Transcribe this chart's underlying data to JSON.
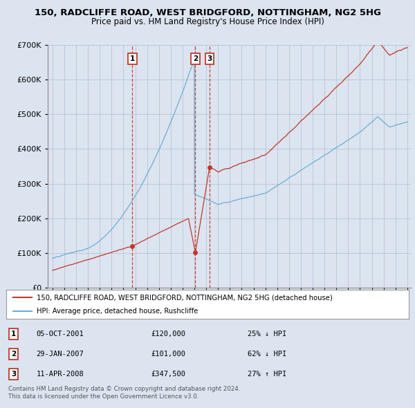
{
  "title": "150, RADCLIFFE ROAD, WEST BRIDGFORD, NOTTINGHAM, NG2 5HG",
  "subtitle": "Price paid vs. HM Land Registry's House Price Index (HPI)",
  "transactions": [
    {
      "num": 1,
      "date_str": "05-OCT-2001",
      "price": 120000,
      "year": 2001.76,
      "pct": "25%",
      "dir": "↓"
    },
    {
      "num": 2,
      "date_str": "29-JAN-2007",
      "price": 101000,
      "year": 2007.08,
      "pct": "62%",
      "dir": "↓"
    },
    {
      "num": 3,
      "date_str": "11-APR-2008",
      "price": 347500,
      "year": 2008.28,
      "pct": "27%",
      "dir": "↑"
    }
  ],
  "legend_line1": "150, RADCLIFFE ROAD, WEST BRIDGFORD, NOTTINGHAM, NG2 5HG (detached house)",
  "legend_line2": "HPI: Average price, detached house, Rushcliffe",
  "footer1": "Contains HM Land Registry data © Crown copyright and database right 2024.",
  "footer2": "This data is licensed under the Open Government Licence v3.0.",
  "hpi_color": "#6baed6",
  "price_color": "#c0392b",
  "vline_color": "#c0392b",
  "background_color": "#dce4f0",
  "plot_bg": "#dce4f0",
  "ylim": [
    0,
    700000
  ],
  "xlim_start": 1994.6,
  "xlim_end": 2025.3
}
